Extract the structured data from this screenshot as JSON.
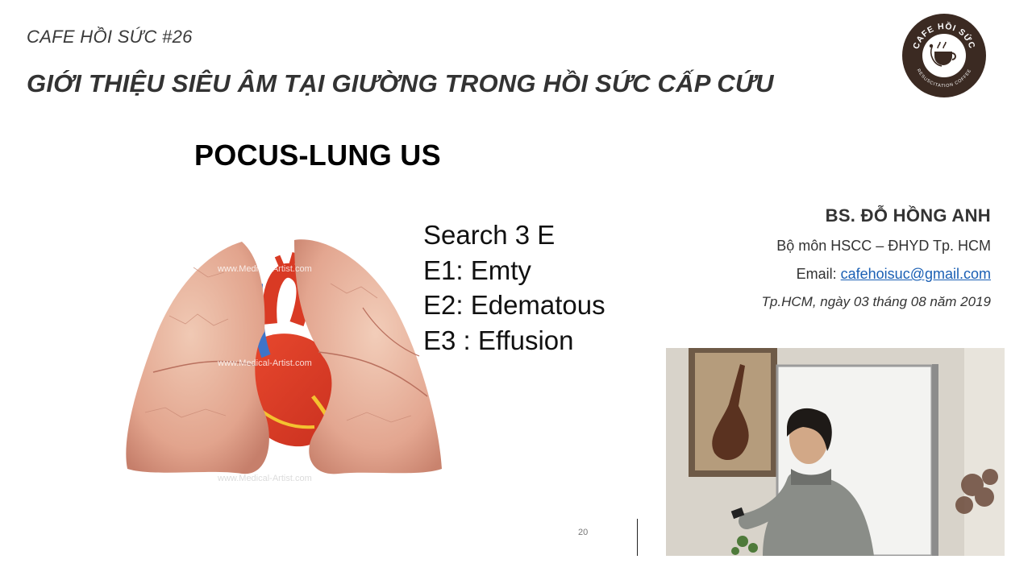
{
  "header": {
    "series": "CAFE HỒI SỨC #26",
    "title": "GIỚI THIỆU SIÊU ÂM TẠI GIƯỜNG TRONG HỒI SỨC CẤP CỨU"
  },
  "logo": {
    "top_text": "CAFE HỒI SỨC",
    "bottom_text": "RESUSCITATION COFFEE",
    "icon": "coffee-cup-stethoscope-icon",
    "color": "#3b2a22"
  },
  "slide": {
    "heading": "POCUS-LUNG US",
    "bullets": [
      "Search  3 E",
      "E1: Emty",
      "E2: Edematous",
      "E3 : Effusion"
    ],
    "page_number": "20",
    "image_watermark": "www.Medical-Artist.com"
  },
  "speaker": {
    "name": "BS. ĐỖ HỒNG ANH",
    "department": "Bộ môn HSCC – ĐHYD Tp.  HCM",
    "email_label": "Email: ",
    "email": "cafehoisuc@gmail.com",
    "date": "Tp.HCM, ngày 03 tháng 08 năm 2019",
    "link_color": "#1a5fb4"
  }
}
